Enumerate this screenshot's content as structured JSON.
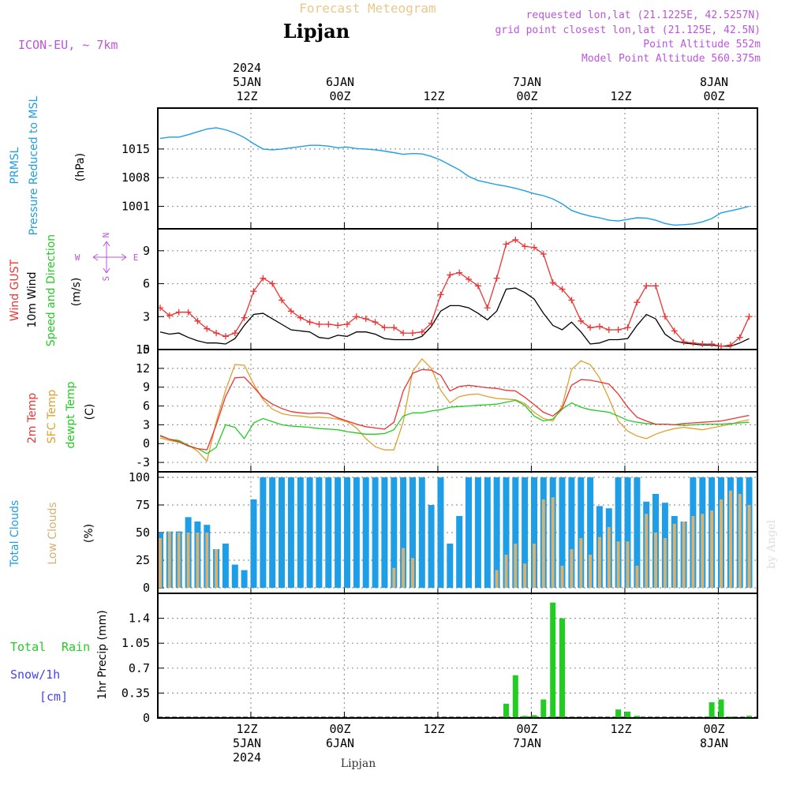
{
  "header": {
    "title": "Forecast Meteogram",
    "location": "Lipjan",
    "model": "ICON-EU, ~ 7km",
    "requested": "requested lon,lat (21.1225E, 42.5257N)",
    "grid_point": "grid point closest lon,lat (21.125E, 42.5N)",
    "point_altitude": "Point Altitude 552m",
    "model_altitude": "Model Point Altitude 560.375m"
  },
  "footer": {
    "location": "Lipjan",
    "credit": "by Angel"
  },
  "colors": {
    "pressure": "#1e9ee6",
    "gust": "#ee3333",
    "wind": "#000000",
    "winddir": "#22cc22",
    "t2m": "#ee3333",
    "sfc": "#e0a030",
    "dew": "#22cc22",
    "total_clouds": "#1e9ee6",
    "low_clouds": "#d8b070",
    "rain": "#22cc22",
    "snow": "#4444ee",
    "header_title": "#e8c88c",
    "info": "#bb55dd"
  },
  "chart_data": [
    {
      "type": "line",
      "title": "PRMSL Pressure Reduced to MSL",
      "ylabel_lines": [
        "PRMSL",
        "Pressure Reduced to MSL"
      ],
      "unit": "(hPa)",
      "ylim": [
        995.5,
        1025
      ],
      "yticks": [
        1001,
        1008,
        1015
      ],
      "x": [
        0,
        1,
        2,
        3,
        4,
        5,
        6,
        7,
        8,
        9,
        10,
        11,
        12,
        13,
        14,
        15,
        16,
        17,
        18,
        19,
        20,
        21,
        22,
        23,
        24,
        25,
        26,
        27,
        28,
        29,
        30,
        31,
        32,
        33,
        34,
        35,
        36,
        37,
        38,
        39,
        40,
        41,
        42,
        43,
        44,
        45,
        46,
        47,
        48,
        49,
        50,
        51,
        52,
        53,
        54,
        55,
        56,
        57,
        58,
        59,
        60,
        61,
        62,
        63
      ],
      "series": [
        {
          "name": "Pressure Reduced to MSL",
          "values": [
            1017.6,
            1017.9,
            1017.9,
            1018.5,
            1019.2,
            1019.9,
            1020.2,
            1019.7,
            1018.9,
            1017.8,
            1016.3,
            1015,
            1014.8,
            1015,
            1015.3,
            1015.6,
            1015.9,
            1015.9,
            1015.7,
            1015.3,
            1015.5,
            1015.1,
            1015,
            1014.8,
            1014.5,
            1014.1,
            1013.7,
            1013.9,
            1013.8,
            1013.2,
            1012.3,
            1011.1,
            1009.9,
            1008.3,
            1007.3,
            1006.8,
            1006.3,
            1005.9,
            1005.4,
            1004.8,
            1004.1,
            1003.6,
            1002.8,
            1001.6,
            1000,
            999.2,
            998.6,
            998.2,
            997.6,
            997.4,
            997.8,
            998.2,
            998.1,
            997.6,
            996.8,
            996.4,
            996.5,
            996.7,
            997.2,
            998,
            999.4,
            999.9,
            1000.4,
            1001
          ]
        }
      ]
    },
    {
      "type": "line",
      "title": "Wind GUST 10m Wind Speed and Direction",
      "ylabel_lines": [
        "Wind GUST",
        "10m Wind",
        "Speed and Direction"
      ],
      "unit": "(m/s)",
      "compass": {
        "n": "N",
        "s": "S",
        "w": "W",
        "e": "E"
      },
      "ylim": [
        0,
        11
      ],
      "yticks": [
        0,
        3,
        6,
        9
      ],
      "x": [
        0,
        1,
        2,
        3,
        4,
        5,
        6,
        7,
        8,
        9,
        10,
        11,
        12,
        13,
        14,
        15,
        16,
        17,
        18,
        19,
        20,
        21,
        22,
        23,
        24,
        25,
        26,
        27,
        28,
        29,
        30,
        31,
        32,
        33,
        34,
        35,
        36,
        37,
        38,
        39,
        40,
        41,
        42,
        43,
        44,
        45,
        46,
        47,
        48,
        49,
        50,
        51,
        52,
        53,
        54,
        55,
        56,
        57,
        58,
        59,
        60,
        61,
        62,
        63
      ],
      "series": [
        {
          "name": "Wind GUST",
          "marker": "+",
          "values": [
            3.8,
            3.1,
            3.4,
            3.4,
            2.6,
            1.9,
            1.5,
            1.2,
            1.5,
            2.9,
            5.3,
            6.5,
            6,
            4.5,
            3.5,
            2.9,
            2.5,
            2.3,
            2.3,
            2.2,
            2.3,
            3,
            2.8,
            2.5,
            2,
            2,
            1.5,
            1.5,
            1.6,
            2.4,
            5,
            6.8,
            7,
            6.4,
            5.8,
            3.8,
            6.5,
            9.6,
            10,
            9.4,
            9.3,
            8.7,
            6.1,
            5.5,
            4.5,
            2.6,
            2,
            2.1,
            1.8,
            1.8,
            2,
            4.3,
            5.8,
            5.8,
            3,
            1.7,
            0.7,
            0.6,
            0.5,
            0.5,
            0.3,
            0.4,
            1.1,
            3
          ]
        },
        {
          "name": "10m Wind",
          "values": [
            1.6,
            1.4,
            1.5,
            1.1,
            0.8,
            0.6,
            0.6,
            0.5,
            1,
            2.2,
            3.2,
            3.3,
            2.8,
            2.3,
            1.8,
            1.7,
            1.6,
            1.1,
            1,
            1.3,
            1.2,
            1.6,
            1.6,
            1.4,
            1,
            0.9,
            0.9,
            0.9,
            1.2,
            2.1,
            3.5,
            4,
            4,
            3.8,
            3.3,
            2.7,
            3.5,
            5.5,
            5.6,
            5.2,
            4.6,
            3.3,
            2.2,
            1.8,
            2.5,
            1.6,
            0.5,
            0.6,
            0.9,
            0.9,
            1,
            2.2,
            3.2,
            2.8,
            1.4,
            0.8,
            0.6,
            0.5,
            0.4,
            0.4,
            0.3,
            0.3,
            0.6,
            1
          ]
        }
      ]
    },
    {
      "type": "line",
      "title": "2m Temp SFC Temp dewpt Temp",
      "ylabel_lines": [
        "2m Temp",
        "SFC Temp",
        "dewpt Temp"
      ],
      "unit": "(C)",
      "ylim": [
        -4.5,
        15
      ],
      "yticks": [
        -3,
        0,
        3,
        6,
        9,
        12,
        15
      ],
      "x": [
        0,
        1,
        2,
        3,
        4,
        5,
        6,
        7,
        8,
        9,
        10,
        11,
        12,
        13,
        14,
        15,
        16,
        17,
        18,
        19,
        20,
        21,
        22,
        23,
        24,
        25,
        26,
        27,
        28,
        29,
        30,
        31,
        32,
        33,
        34,
        35,
        36,
        37,
        38,
        39,
        40,
        41,
        42,
        43,
        44,
        45,
        46,
        47,
        48,
        49,
        50,
        51,
        52,
        53,
        54,
        55,
        56,
        57,
        58,
        59,
        60,
        61,
        62,
        63
      ],
      "series": [
        {
          "name": "2m Temp",
          "values": [
            1.3,
            0.7,
            0.3,
            -0.4,
            -0.8,
            -1,
            3,
            7.5,
            10.5,
            10.6,
            9,
            7.3,
            6.3,
            5.6,
            5.1,
            4.9,
            4.8,
            4.9,
            4.8,
            4.1,
            3.6,
            3.1,
            2.7,
            2.5,
            2.3,
            3.4,
            8.4,
            11.2,
            11.8,
            11.7,
            10.9,
            8.4,
            9.1,
            9.3,
            9.1,
            8.9,
            8.8,
            8.5,
            8.4,
            7.4,
            6.2,
            5,
            4.4,
            5.6,
            9.3,
            10.2,
            10.1,
            9.8,
            9.5,
            7.9,
            5.8,
            4.2,
            3.6,
            3.1,
            3.1,
            3,
            3.2,
            3.3,
            3.4,
            3.5,
            3.6,
            3.9,
            4.2,
            4.5
          ]
        },
        {
          "name": "SFC Temp",
          "values": [
            0.9,
            0.5,
            0.2,
            -0.2,
            -1.2,
            -2.8,
            3.5,
            8.5,
            12.6,
            12.5,
            9.5,
            7,
            5.5,
            4.8,
            4.5,
            4.4,
            4.2,
            4.2,
            4.1,
            3.9,
            3.5,
            2.5,
            0.8,
            -0.5,
            -1,
            -1,
            3.5,
            11.5,
            13.5,
            12,
            8.5,
            6.5,
            7.5,
            7.8,
            7.9,
            7.5,
            7.2,
            7.1,
            7,
            6.4,
            5,
            4,
            3.6,
            6,
            11.8,
            13.2,
            12.6,
            10.5,
            7.2,
            3.6,
            2,
            1.2,
            0.8,
            1.5,
            2,
            2.4,
            2.6,
            2.4,
            2.2,
            2.5,
            2.8,
            3.1,
            3.5,
            3.8
          ]
        },
        {
          "name": "dewpt Temp",
          "values": [
            1.2,
            0.7,
            0.5,
            -0.3,
            -0.8,
            -1.6,
            -0.6,
            3,
            2.6,
            0.8,
            3.3,
            4,
            3.5,
            3,
            2.8,
            2.7,
            2.6,
            2.4,
            2.3,
            2.2,
            1.9,
            1.7,
            1.5,
            1.5,
            1.6,
            2.2,
            4.4,
            4.9,
            4.9,
            5.2,
            5.4,
            5.8,
            5.9,
            6,
            6.1,
            6.2,
            6.3,
            6.6,
            6.9,
            6.1,
            4.4,
            3.6,
            3.9,
            5.5,
            6.5,
            5.8,
            5.4,
            5.2,
            5,
            4.4,
            3.7,
            3.4,
            3.2,
            3.1,
            3.1,
            3,
            2.9,
            3,
            3.1,
            3.1,
            3.1,
            3.2,
            3.3,
            3.4
          ]
        }
      ]
    },
    {
      "type": "bar",
      "title": "Total Clouds Low Clouds",
      "ylabel_lines": [
        "Total Clouds",
        "Low Clouds"
      ],
      "unit": "(%)",
      "ylim": [
        -5,
        105
      ],
      "yticks": [
        0,
        25,
        50,
        75,
        100
      ],
      "x": [
        0,
        1,
        2,
        3,
        4,
        5,
        6,
        7,
        8,
        9,
        10,
        11,
        12,
        13,
        14,
        15,
        16,
        17,
        18,
        19,
        20,
        21,
        22,
        23,
        24,
        25,
        26,
        27,
        28,
        29,
        30,
        31,
        32,
        33,
        34,
        35,
        36,
        37,
        38,
        39,
        40,
        41,
        42,
        43,
        44,
        45,
        46,
        47,
        48,
        49,
        50,
        51,
        52,
        53,
        54,
        55,
        56,
        57,
        58,
        59,
        60,
        61,
        62,
        63
      ],
      "series": [
        {
          "name": "Total Clouds",
          "values": [
            50,
            51,
            51,
            64,
            60,
            57,
            35,
            40,
            21,
            16,
            80,
            100,
            100,
            100,
            100,
            100,
            100,
            100,
            100,
            100,
            100,
            100,
            100,
            100,
            100,
            100,
            100,
            100,
            100,
            75,
            100,
            40,
            65,
            100,
            100,
            100,
            100,
            100,
            100,
            100,
            100,
            100,
            100,
            100,
            100,
            100,
            100,
            74,
            72,
            100,
            100,
            100,
            78,
            85,
            77,
            65,
            60,
            100,
            100,
            100,
            100,
            100,
            100,
            100
          ]
        },
        {
          "name": "Low Clouds",
          "values": [
            45,
            51,
            50,
            50,
            50,
            50,
            35,
            0,
            0,
            0,
            0,
            0,
            0,
            0,
            0,
            0,
            0,
            0,
            0,
            0,
            0,
            0,
            0,
            0,
            0,
            18,
            36,
            27,
            0,
            0,
            0,
            0,
            0,
            0,
            0,
            0,
            16,
            30,
            40,
            22,
            40,
            80,
            82,
            20,
            35,
            45,
            30,
            46,
            55,
            42,
            42,
            20,
            67,
            50,
            45,
            58,
            60,
            65,
            67,
            70,
            80,
            88,
            85,
            75
          ]
        }
      ]
    },
    {
      "type": "bar",
      "title": "Total Rain Snow/1h",
      "left_labels": {
        "total": "Total",
        "rain": "Rain",
        "snow": "Snow/1h",
        "snow_unit": "[cm]"
      },
      "ylabel": "1hr Precip (mm)",
      "ylim": [
        0,
        1.75
      ],
      "ytick_labels": [
        "0",
        "0.35",
        "0.7",
        "1.05",
        "1.4"
      ],
      "series": [
        {
          "name": "Rain",
          "x": [
            37,
            38,
            39,
            40,
            41,
            42,
            43,
            44,
            49,
            50,
            51,
            59,
            60,
            61,
            63
          ],
          "values": [
            0.2,
            0.6,
            0.03,
            0.04,
            0.26,
            1.62,
            1.4,
            0,
            0.12,
            0.09,
            0.03,
            0.22,
            0.26,
            0.02,
            0.03
          ]
        }
      ]
    }
  ],
  "time_axis": {
    "top": [
      {
        "x": 9.7,
        "lines": [
          "2024",
          "5JAN",
          "12Z"
        ]
      },
      {
        "x": 19.7,
        "lines": [
          "6JAN",
          "00Z"
        ]
      },
      {
        "x": 29.7,
        "lines": [
          "12Z"
        ]
      },
      {
        "x": 39.7,
        "lines": [
          "7JAN",
          "00Z"
        ]
      },
      {
        "x": 49.7,
        "lines": [
          "12Z"
        ]
      },
      {
        "x": 59.7,
        "lines": [
          "8JAN",
          "00Z"
        ]
      }
    ],
    "bottom": [
      {
        "x": 9.7,
        "lines": [
          "12Z",
          "5JAN",
          "2024"
        ]
      },
      {
        "x": 19.7,
        "lines": [
          "00Z",
          "6JAN"
        ]
      },
      {
        "x": 29.7,
        "lines": [
          "12Z"
        ]
      },
      {
        "x": 39.7,
        "lines": [
          "00Z",
          "7JAN"
        ]
      },
      {
        "x": 49.7,
        "lines": [
          "12Z"
        ]
      },
      {
        "x": 59.7,
        "lines": [
          "00Z",
          "8JAN"
        ]
      }
    ]
  }
}
